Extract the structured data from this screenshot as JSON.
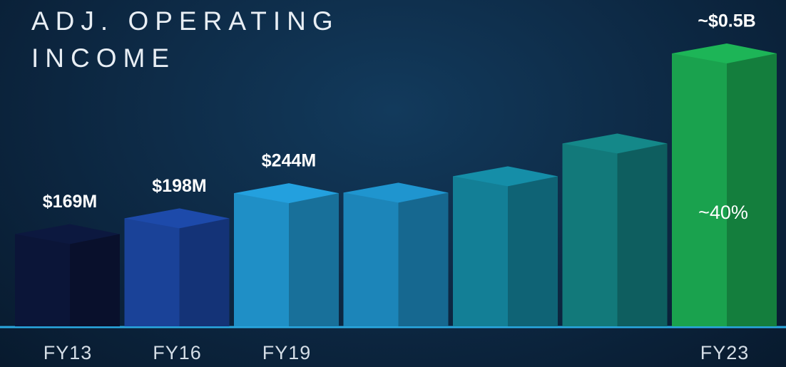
{
  "chart_data": {
    "type": "bar3d",
    "title": "ADJ. OPERATING INCOME",
    "categories": [
      "FY13",
      "FY16",
      "FY19",
      null,
      null,
      null,
      "FY23"
    ],
    "values": [
      169,
      198,
      244,
      245,
      275,
      335,
      500
    ],
    "value_labels": [
      "$169M",
      "$198M",
      "$244M",
      null,
      null,
      null,
      "~$0.5B"
    ],
    "colors": [
      "#0b1538",
      "#1a4298",
      "#1f8fc6",
      "#1c85b9",
      "#137f96",
      "#12797a",
      "#1aa24e"
    ],
    "annotations": [
      {
        "text": "~40%",
        "category": 6
      }
    ]
  }
}
